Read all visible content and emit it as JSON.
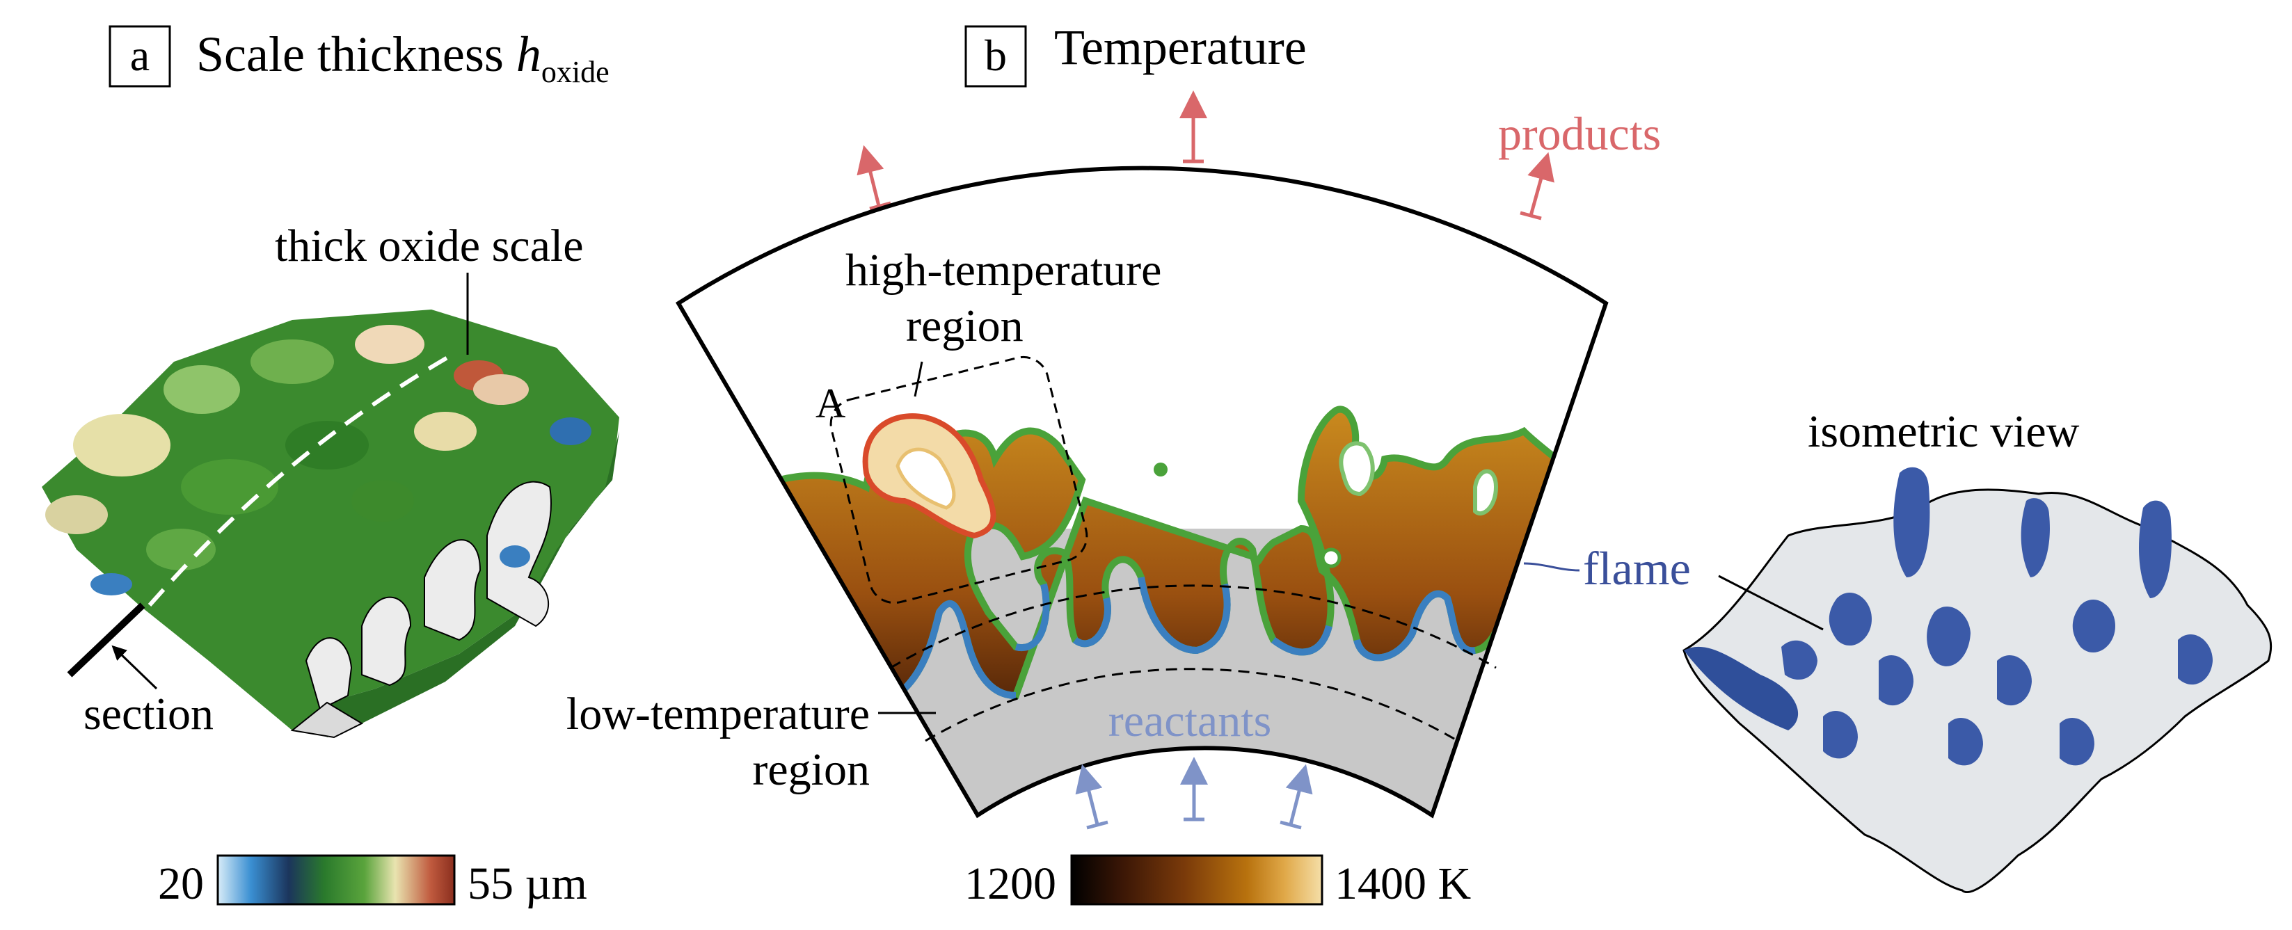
{
  "panel_a": {
    "letter": "a",
    "title": "Scale thickness ",
    "title_var": "h",
    "title_sub": "oxide",
    "annotation_thick": "thick oxide scale",
    "annotation_section": "section",
    "colorbar": {
      "min_label": "20",
      "max_label": "55 µm",
      "colors": [
        "#d8ecf8",
        "#3a8fd2",
        "#1b355c",
        "#2a7a2c",
        "#5aa43c",
        "#e9e4b0",
        "#c05a3e",
        "#8a2e1e"
      ]
    }
  },
  "panel_b": {
    "letter": "b",
    "title": "Temperature",
    "label_products": "products",
    "label_reactants": "reactants",
    "label_flame": "flame",
    "label_high_1": "high-temperature",
    "label_high_2": "region",
    "label_low_1": "low-temperature",
    "label_low_2": "region",
    "label_A": "A",
    "label_iso": "isometric view",
    "colorbar": {
      "min_label": "1200",
      "max_label": "1400 K",
      "colors": [
        "#000000",
        "#3a1606",
        "#7a3a0a",
        "#b8720e",
        "#e0a848",
        "#f5dfa8"
      ]
    }
  },
  "colors": {
    "products": "#d9676a",
    "reactants": "#7f93c8",
    "flame": "#3a4f9a",
    "gray": "#c8c8c8"
  }
}
